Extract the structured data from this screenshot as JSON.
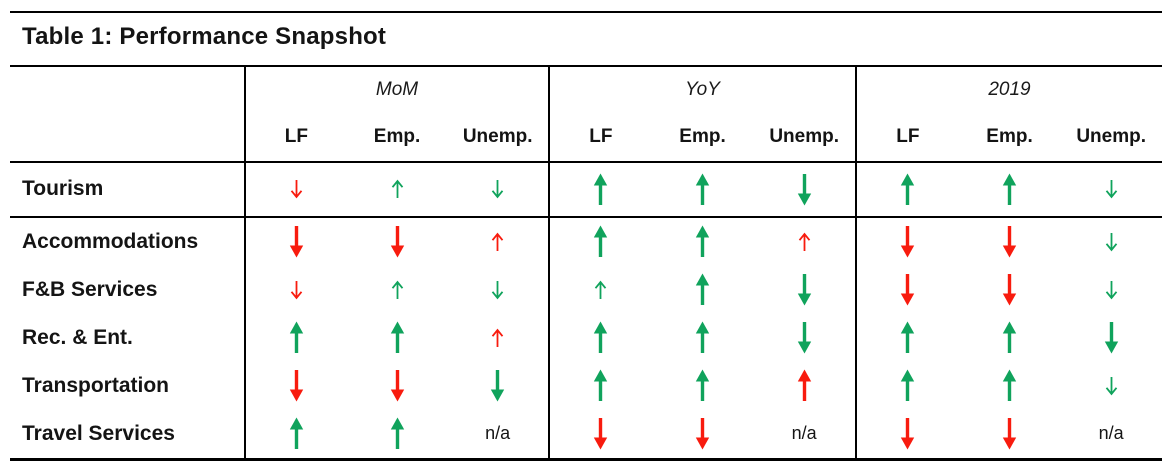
{
  "colors": {
    "green": "#10a35c",
    "red": "#f81b0e",
    "line": "#000000",
    "text": "#161616"
  },
  "chart_data": {
    "type": "table",
    "title": "Table 1: Performance Snapshot",
    "column_groups": [
      "MoM",
      "YoY",
      "2019"
    ],
    "sub_columns": [
      "LF",
      "Emp.",
      "Unemp."
    ],
    "na_label": "n/a",
    "cell_encoding": "direction-color-size tokens; 'na' = not available",
    "rows": [
      {
        "label": "Tourism",
        "cells": [
          "down-red-sm",
          "up-green-sm",
          "down-green-sm",
          "up-green-lg",
          "up-green-lg",
          "down-green-lg",
          "up-green-lg",
          "up-green-lg",
          "down-green-sm"
        ]
      },
      {
        "label": "Accommodations",
        "cells": [
          "down-red-lg",
          "down-red-lg",
          "up-red-sm",
          "up-green-lg",
          "up-green-lg",
          "up-red-sm",
          "down-red-lg",
          "down-red-lg",
          "down-green-sm"
        ]
      },
      {
        "label": "F&B Services",
        "cells": [
          "down-red-sm",
          "up-green-sm",
          "down-green-sm",
          "up-green-sm",
          "up-green-lg",
          "down-green-lg",
          "down-red-lg",
          "down-red-lg",
          "down-green-sm"
        ]
      },
      {
        "label": "Rec. & Ent.",
        "cells": [
          "up-green-lg",
          "up-green-lg",
          "up-red-sm",
          "up-green-lg",
          "up-green-lg",
          "down-green-lg",
          "up-green-lg",
          "up-green-lg",
          "down-green-lg"
        ]
      },
      {
        "label": "Transportation",
        "cells": [
          "down-red-lg",
          "down-red-lg",
          "down-green-lg",
          "up-green-lg",
          "up-green-lg",
          "up-red-lg",
          "up-green-lg",
          "up-green-lg",
          "down-green-sm"
        ]
      },
      {
        "label": "Travel Services",
        "cells": [
          "up-green-lg",
          "up-green-lg",
          "na",
          "down-red-lg",
          "down-red-lg",
          "na",
          "down-red-lg",
          "down-red-lg",
          "na"
        ]
      }
    ]
  }
}
